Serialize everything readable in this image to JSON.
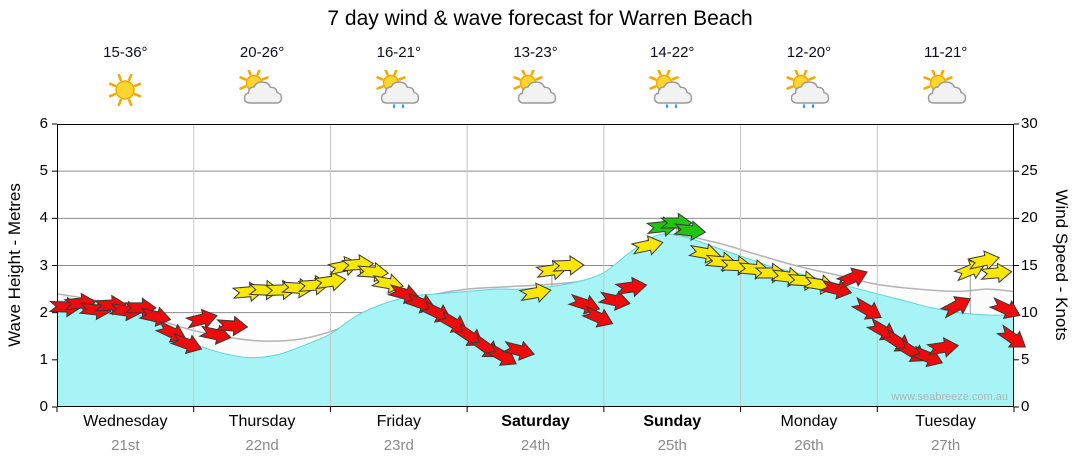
{
  "title": "7 day wind & wave forecast for Warren Beach",
  "watermark": "www.seabreeze.com.au",
  "days": [
    {
      "name": "Wednesday",
      "date": "21st",
      "temp": "15-36°",
      "icon": "sunny",
      "bold": false
    },
    {
      "name": "Thursday",
      "date": "22nd",
      "temp": "20-26°",
      "icon": "sun-cloud",
      "bold": false
    },
    {
      "name": "Friday",
      "date": "23rd",
      "temp": "16-21°",
      "icon": "sun-cloud-rain",
      "bold": false
    },
    {
      "name": "Saturday",
      "date": "24th",
      "temp": "13-23°",
      "icon": "sun-cloud",
      "bold": true
    },
    {
      "name": "Sunday",
      "date": "25th",
      "temp": "14-22°",
      "icon": "sun-cloud-rain",
      "bold": true
    },
    {
      "name": "Monday",
      "date": "26th",
      "temp": "12-20°",
      "icon": "sun-cloud-rain",
      "bold": false
    },
    {
      "name": "Tuesday",
      "date": "27th",
      "temp": "11-21°",
      "icon": "sun-cloud",
      "bold": false
    }
  ],
  "axes": {
    "left_label": "Wave Height - Metres",
    "right_label": "Wind Speed - Knots",
    "left_ticks": [
      0,
      1,
      2,
      3,
      4,
      5,
      6
    ],
    "right_ticks": [
      0,
      5,
      10,
      15,
      20,
      25,
      30
    ]
  },
  "chart_data": {
    "type": "area",
    "title": "7 day wind & wave forecast for Warren Beach",
    "x_unit": "days",
    "x_range": [
      0,
      7
    ],
    "x_categories": [
      "Wednesday 21st",
      "Thursday 22nd",
      "Friday 23rd",
      "Saturday 24th",
      "Sunday 25th",
      "Monday 26th",
      "Tuesday 27th"
    ],
    "ylim_wave_m": [
      0,
      6
    ],
    "ylim_wind_kn": [
      0,
      30
    ],
    "grid": true,
    "colors": {
      "sea": "#a6f4f6",
      "sea_edge": "#62d2d8",
      "band_fill": "#fbfbfb",
      "band_edge": "#b3b3b3",
      "wind": {
        "red": "#ee0b0b",
        "yellow": "#f9e700",
        "green": "#22c50d"
      }
    },
    "wave_height_m": {
      "name": "Wave height (cyan area, metres)",
      "x": [
        0,
        0.25,
        0.5,
        0.75,
        1.0,
        1.2,
        1.4,
        1.6,
        1.8,
        2.0,
        2.2,
        2.4,
        2.6,
        2.8,
        3.0,
        3.2,
        3.4,
        3.6,
        3.8,
        4.0,
        4.2,
        4.4,
        4.6,
        4.8,
        5.0,
        5.2,
        5.4,
        5.6,
        5.8,
        6.0,
        6.2,
        6.4,
        6.6,
        6.8,
        7.0
      ],
      "values": [
        2.25,
        2.2,
        2.05,
        1.75,
        1.35,
        1.15,
        1.05,
        1.1,
        1.3,
        1.55,
        1.95,
        2.2,
        2.35,
        2.4,
        2.45,
        2.5,
        2.5,
        2.55,
        2.65,
        2.85,
        3.3,
        3.65,
        3.6,
        3.4,
        3.2,
        3.0,
        2.85,
        2.7,
        2.55,
        2.4,
        2.25,
        2.1,
        2.0,
        1.95,
        1.95
      ]
    },
    "secondary_band_m": {
      "name": "Secondary wave band (white area, metres)",
      "x": [
        0,
        0.3,
        0.6,
        0.9,
        1.2,
        1.5,
        1.8,
        2.1,
        2.4,
        2.7,
        3.0,
        3.3,
        3.6,
        3.9,
        4.2,
        4.5,
        4.8,
        5.1,
        5.4,
        5.7,
        6.0,
        6.3,
        6.6,
        6.8,
        7.0
      ],
      "values": [
        2.4,
        2.25,
        2.0,
        1.7,
        1.5,
        1.4,
        1.45,
        1.7,
        2.1,
        2.35,
        2.5,
        2.55,
        2.6,
        2.7,
        3.0,
        3.6,
        3.5,
        3.25,
        3.0,
        2.8,
        2.6,
        2.5,
        2.45,
        2.5,
        2.45
      ]
    },
    "wind_arrows_format": [
      "x_days",
      "knots",
      "direction_deg_cw_from_east",
      "color",
      "stem"
    ],
    "wind_arrows": [
      [
        0.06,
        10.6,
        2,
        "red"
      ],
      [
        0.17,
        11.0,
        -6,
        "red"
      ],
      [
        0.28,
        10.3,
        6,
        "red"
      ],
      [
        0.39,
        10.8,
        -3,
        "red"
      ],
      [
        0.5,
        10.2,
        8,
        "red"
      ],
      [
        0.61,
        10.5,
        0,
        "red"
      ],
      [
        0.72,
        9.6,
        12,
        "red"
      ],
      [
        0.84,
        7.9,
        25,
        "red"
      ],
      [
        0.95,
        6.7,
        20,
        "red"
      ],
      [
        1.06,
        9.3,
        -14,
        "red"
      ],
      [
        1.16,
        7.7,
        12,
        "red"
      ],
      [
        1.28,
        8.6,
        4,
        "red"
      ],
      [
        1.4,
        12.2,
        -5,
        "yellow"
      ],
      [
        1.52,
        12.4,
        2,
        "yellow"
      ],
      [
        1.64,
        12.4,
        -2,
        "yellow"
      ],
      [
        1.76,
        12.6,
        4,
        "yellow"
      ],
      [
        1.88,
        12.9,
        -4,
        "yellow"
      ],
      [
        2.0,
        13.3,
        -8,
        "yellow"
      ],
      [
        2.1,
        14.9,
        -12,
        "yellow"
      ],
      [
        2.2,
        15.1,
        -4,
        "yellow"
      ],
      [
        2.31,
        14.3,
        4,
        "yellow"
      ],
      [
        2.42,
        13.1,
        10,
        "yellow"
      ],
      [
        2.54,
        12.0,
        15,
        "red"
      ],
      [
        2.66,
        11.0,
        20,
        "red"
      ],
      [
        2.78,
        10.0,
        26,
        "red"
      ],
      [
        2.9,
        8.9,
        30,
        "red"
      ],
      [
        3.02,
        7.5,
        34,
        "red"
      ],
      [
        3.14,
        6.3,
        36,
        "red"
      ],
      [
        3.26,
        5.4,
        30,
        "red"
      ],
      [
        3.38,
        6.0,
        14,
        "red"
      ],
      [
        3.5,
        12.1,
        -10,
        "yellow",
        1
      ],
      [
        3.62,
        14.5,
        -8,
        "yellow",
        1
      ],
      [
        3.74,
        15.0,
        -2,
        "yellow"
      ],
      [
        3.86,
        10.9,
        18,
        "red"
      ],
      [
        3.96,
        9.5,
        24,
        "red"
      ],
      [
        4.08,
        11.3,
        12,
        "red"
      ],
      [
        4.2,
        12.7,
        -8,
        "red"
      ],
      [
        4.32,
        17.1,
        -12,
        "yellow",
        1
      ],
      [
        4.43,
        19.1,
        -6,
        "green"
      ],
      [
        4.53,
        19.5,
        0,
        "green",
        1
      ],
      [
        4.63,
        18.7,
        6,
        "green"
      ],
      [
        4.74,
        16.3,
        10,
        "yellow"
      ],
      [
        4.86,
        15.4,
        5,
        "yellow"
      ],
      [
        4.97,
        15.0,
        2,
        "yellow"
      ],
      [
        5.1,
        14.6,
        5,
        "yellow"
      ],
      [
        5.22,
        14.2,
        0,
        "yellow"
      ],
      [
        5.34,
        13.8,
        7,
        "yellow"
      ],
      [
        5.46,
        13.4,
        4,
        "yellow"
      ],
      [
        5.58,
        13.0,
        9,
        "yellow"
      ],
      [
        5.7,
        12.5,
        14,
        "red"
      ],
      [
        5.82,
        13.7,
        -22,
        "red"
      ],
      [
        5.93,
        10.3,
        30,
        "red"
      ],
      [
        6.04,
        8.1,
        30,
        "red"
      ],
      [
        6.15,
        6.9,
        33,
        "red"
      ],
      [
        6.26,
        5.8,
        32,
        "red"
      ],
      [
        6.37,
        5.3,
        22,
        "red"
      ],
      [
        6.48,
        6.3,
        -8,
        "red"
      ],
      [
        6.58,
        10.7,
        -28,
        "red"
      ],
      [
        6.68,
        14.5,
        -22,
        "yellow",
        1
      ],
      [
        6.78,
        15.5,
        -12,
        "yellow"
      ],
      [
        6.87,
        14.2,
        -5,
        "yellow"
      ],
      [
        6.94,
        10.4,
        25,
        "red"
      ],
      [
        6.99,
        7.3,
        35,
        "red"
      ]
    ]
  }
}
